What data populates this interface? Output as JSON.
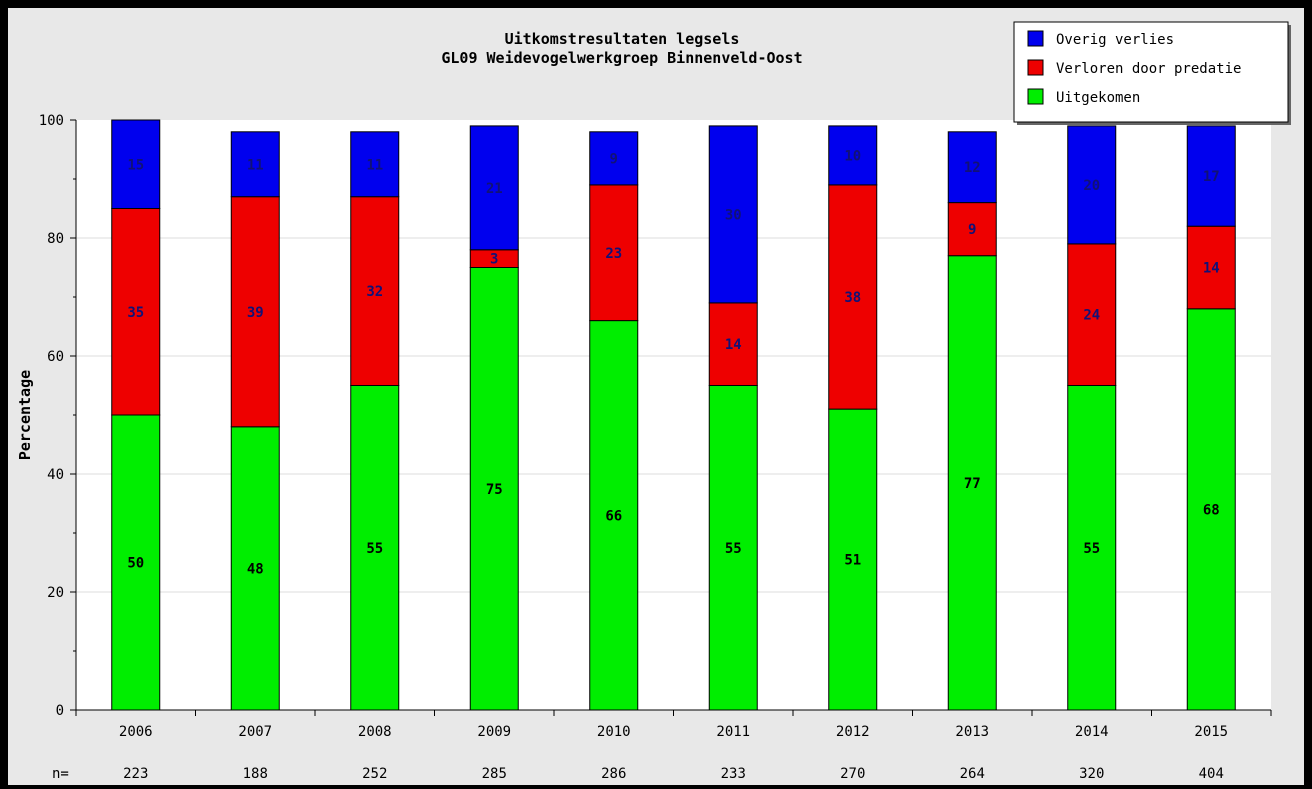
{
  "chart_data": {
    "type": "bar",
    "stacked": true,
    "title": "Uitkomstresultaten legsels",
    "subtitle": "GL09 Weidevogelwerkgroep Binnenveld-Oost",
    "ylabel": "Percentage",
    "xlabel": "",
    "ylim": [
      0,
      100
    ],
    "yticks": [
      "0",
      "20",
      "40",
      "60",
      "80",
      "100"
    ],
    "grid": true,
    "legend_position": "top-right",
    "categories": [
      "2006",
      "2007",
      "2008",
      "2009",
      "2010",
      "2011",
      "2012",
      "2013",
      "2014",
      "2015"
    ],
    "n_label": "n=",
    "n_values": [
      "223",
      "188",
      "252",
      "285",
      "286",
      "233",
      "270",
      "264",
      "320",
      "404"
    ],
    "series": [
      {
        "name": "Uitgekomen",
        "color": "#00ee00",
        "label_color": "#000000",
        "values": [
          50,
          48,
          55,
          75,
          66,
          55,
          51,
          77,
          55,
          68
        ]
      },
      {
        "name": "Verloren door predatie",
        "color": "#ee0000",
        "label_color": "#111177",
        "values": [
          35,
          39,
          32,
          3,
          23,
          14,
          38,
          9,
          24,
          14
        ]
      },
      {
        "name": "Overig verlies",
        "color": "#0000ee",
        "label_color": "#111177",
        "values": [
          15,
          11,
          11,
          21,
          9,
          30,
          10,
          12,
          20,
          17
        ]
      }
    ],
    "legend_order": [
      "Overig verlies",
      "Verloren door predatie",
      "Uitgekomen"
    ]
  }
}
